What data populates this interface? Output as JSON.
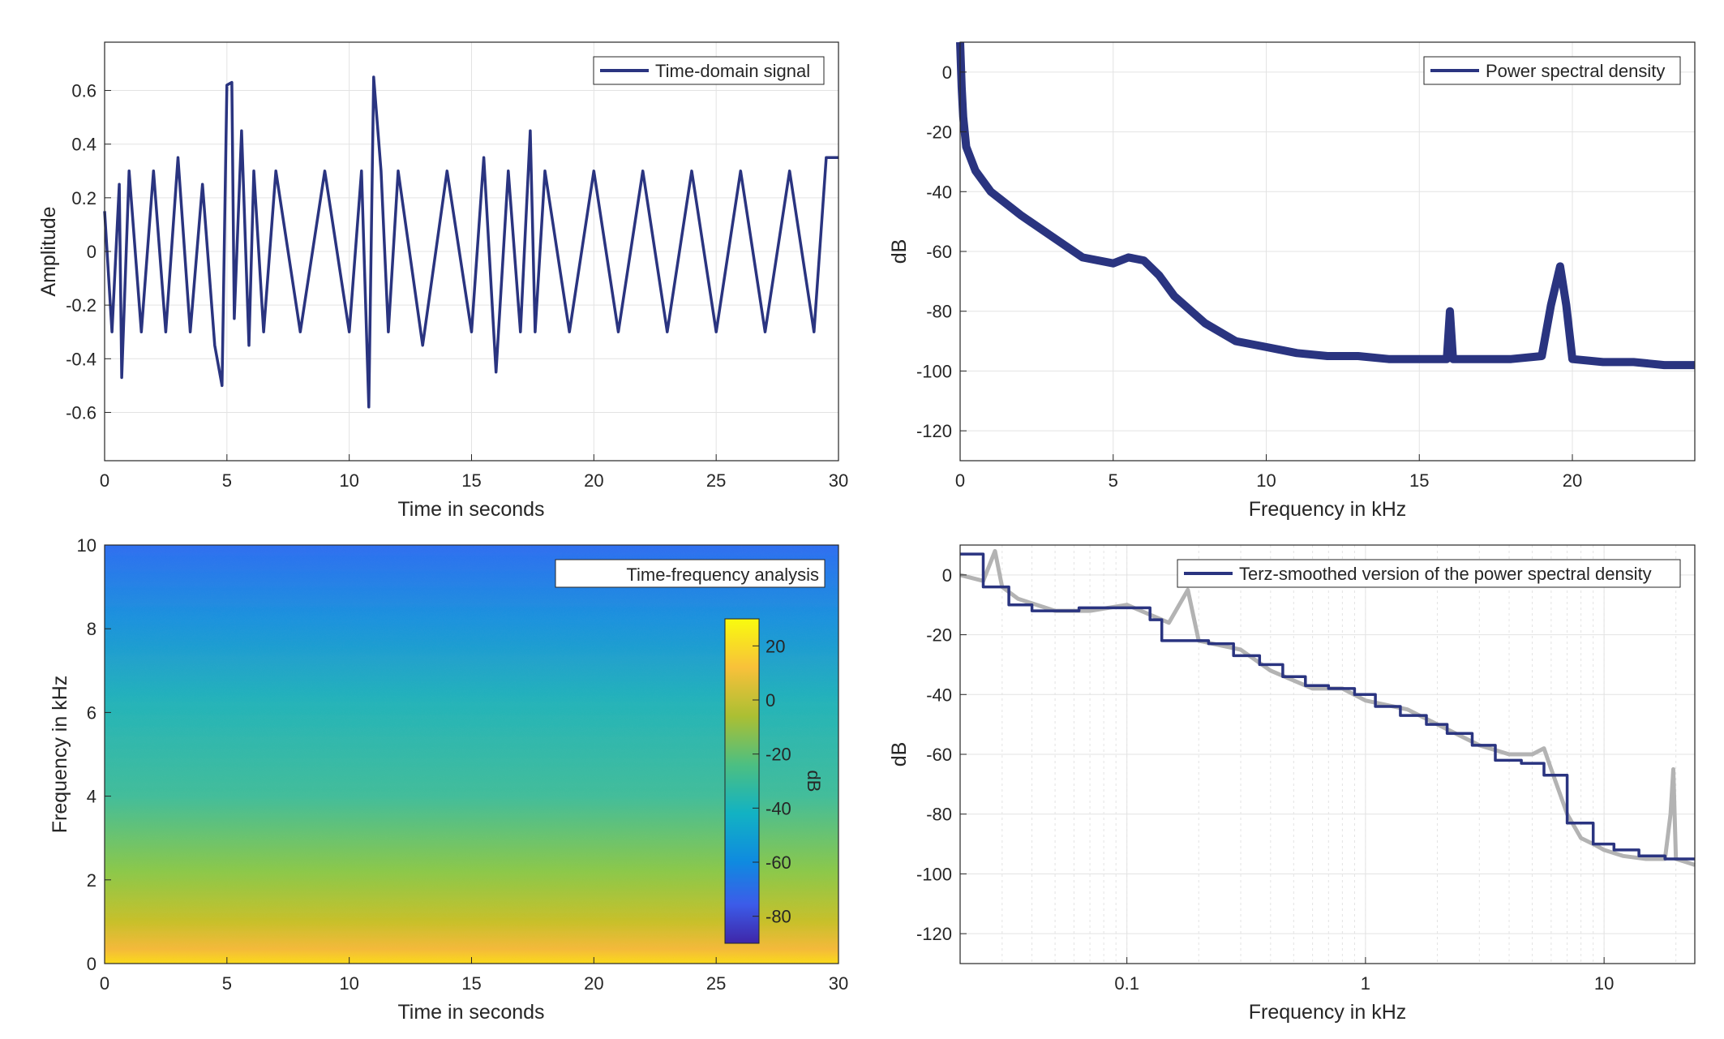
{
  "colors": {
    "series": "#2a3480",
    "background": "#ffffff",
    "grid": "#e3e3e3",
    "axis": "#262626",
    "smoothed_raw": "#b3b3b3"
  },
  "chart_data": [
    {
      "id": "time-signal",
      "type": "line",
      "legend": [
        "Time-domain signal"
      ],
      "legend_placement": "top-right",
      "xlabel": "Time in seconds",
      "ylabel": "Amplitude",
      "xlim": [
        0,
        30
      ],
      "ylim": [
        -0.78,
        0.78
      ],
      "xticks": [
        0,
        5,
        10,
        15,
        20,
        25,
        30
      ],
      "xtick_labels": [
        "0",
        "5",
        "10",
        "15",
        "20",
        "25",
        "30"
      ],
      "yticks": [
        0.6,
        0.4,
        0.2,
        0,
        -0.2,
        -0.4,
        -0.6
      ],
      "ytick_labels": [
        "0.6",
        "0.4",
        "0.2",
        "0",
        "-0.2",
        "-0.4",
        "-0.6"
      ],
      "grid": true,
      "series": [
        {
          "x": [
            0,
            0.3,
            0.6,
            0.7,
            1,
            1.5,
            2,
            2.5,
            3,
            3.5,
            4,
            4.5,
            4.8,
            5,
            5.2,
            5.3,
            5.6,
            5.9,
            6.1,
            6.5,
            7,
            8,
            9,
            10,
            10.5,
            10.8,
            11,
            11.3,
            11.6,
            12,
            13,
            14,
            15,
            15.5,
            16,
            16.5,
            17,
            17.4,
            17.6,
            18,
            19,
            20,
            21,
            22,
            23,
            24,
            25,
            26,
            27,
            28,
            29,
            29.5,
            30
          ],
          "y": [
            0.15,
            -0.3,
            0.25,
            -0.47,
            0.3,
            -0.3,
            0.3,
            -0.3,
            0.35,
            -0.3,
            0.25,
            -0.35,
            -0.5,
            0.62,
            0.63,
            -0.25,
            0.45,
            -0.35,
            0.3,
            -0.3,
            0.3,
            -0.3,
            0.3,
            -0.3,
            0.3,
            -0.58,
            0.65,
            0.3,
            -0.3,
            0.3,
            -0.35,
            0.3,
            -0.3,
            0.35,
            -0.45,
            0.3,
            -0.3,
            0.45,
            -0.3,
            0.3,
            -0.3,
            0.3,
            -0.3,
            0.3,
            -0.3,
            0.3,
            -0.3,
            0.3,
            -0.3,
            0.3,
            -0.3,
            0.35,
            0.35
          ]
        }
      ]
    },
    {
      "id": "psd",
      "type": "line",
      "legend": [
        "Power spectral density"
      ],
      "legend_placement": "top-right",
      "xlabel": "Frequency in kHz",
      "ylabel": "dB",
      "xlim": [
        0,
        24
      ],
      "ylim": [
        -130,
        10
      ],
      "xticks": [
        0,
        5,
        10,
        15,
        20
      ],
      "xtick_labels": [
        "0",
        "5",
        "10",
        "15",
        "20"
      ],
      "yticks": [
        0,
        -20,
        -40,
        -60,
        -80,
        -100,
        -120
      ],
      "ytick_labels": [
        "0",
        "-20",
        "-40",
        "-60",
        "-80",
        "-100",
        "-120"
      ],
      "grid": true,
      "series": [
        {
          "x": [
            0,
            0.05,
            0.1,
            0.2,
            0.5,
            1,
            2,
            3,
            4,
            5,
            5.5,
            6,
            6.5,
            7,
            8,
            9,
            10,
            11,
            12,
            13,
            14,
            15,
            15.9,
            16,
            16.1,
            17,
            18,
            19,
            19.3,
            19.6,
            19.8,
            20,
            21,
            22,
            23,
            24
          ],
          "y": [
            10,
            -5,
            -15,
            -25,
            -33,
            -40,
            -48,
            -55,
            -62,
            -64,
            -62,
            -63,
            -68,
            -75,
            -84,
            -90,
            -92,
            -94,
            -95,
            -95,
            -96,
            -96,
            -96,
            -80,
            -96,
            -96,
            -96,
            -95,
            -78,
            -65,
            -78,
            -96,
            -97,
            -97,
            -98,
            -98
          ]
        }
      ]
    },
    {
      "id": "spectrogram",
      "type": "heatmap",
      "legend": [
        "Time-frequency analysis"
      ],
      "legend_placement": "top-right",
      "xlabel": "Time in seconds",
      "ylabel": "Frequency in kHz",
      "xlim": [
        0,
        30
      ],
      "ylim": [
        0,
        10
      ],
      "xticks": [
        0,
        5,
        10,
        15,
        20,
        25,
        30
      ],
      "xtick_labels": [
        "0",
        "5",
        "10",
        "15",
        "20",
        "25",
        "30"
      ],
      "yticks": [
        0,
        2,
        4,
        6,
        8,
        10
      ],
      "ytick_labels": [
        "0",
        "2",
        "4",
        "6",
        "8",
        "10"
      ],
      "colorbar": {
        "label": "dB",
        "range": [
          -90,
          30
        ],
        "ticks": [
          20,
          0,
          -20,
          -40,
          -60,
          -80
        ],
        "tick_labels": [
          "20",
          "0",
          "-20",
          "-40",
          "-60",
          "-80"
        ]
      },
      "approx_level_by_frequency": {
        "frequency_khz": [
          0,
          0.3,
          1,
          2,
          4,
          6,
          8,
          10
        ],
        "level_db": [
          15,
          5,
          -10,
          -18,
          -25,
          -30,
          -40,
          -50
        ]
      }
    },
    {
      "id": "terz-psd",
      "type": "line",
      "legend": [
        "Terz-smoothed version of the power spectral density"
      ],
      "legend_placement": "top-right",
      "xlabel": "Frequency in kHz",
      "ylabel": "dB",
      "xscale": "log",
      "xlim": [
        0.02,
        24
      ],
      "ylim": [
        -130,
        10
      ],
      "xticks": [
        0.1,
        1,
        10
      ],
      "xtick_labels": [
        "0.1",
        "1",
        "10"
      ],
      "yticks": [
        0,
        -20,
        -40,
        -60,
        -80,
        -100,
        -120
      ],
      "ytick_labels": [
        "0",
        "-20",
        "-40",
        "-60",
        "-80",
        "-100",
        "-120"
      ],
      "grid": true,
      "series": [
        {
          "role": "smoothed",
          "x": [
            0.02,
            0.025,
            0.025,
            0.032,
            0.032,
            0.04,
            0.04,
            0.063,
            0.063,
            0.08,
            0.08,
            0.125,
            0.125,
            0.14,
            0.14,
            0.22,
            0.22,
            0.28,
            0.28,
            0.36,
            0.36,
            0.45,
            0.45,
            0.56,
            0.56,
            0.7,
            0.7,
            0.9,
            0.9,
            1.1,
            1.1,
            1.4,
            1.4,
            1.8,
            1.8,
            2.2,
            2.2,
            2.8,
            2.8,
            3.5,
            3.5,
            4.5,
            4.5,
            5.6,
            5.6,
            7,
            7,
            9,
            9,
            11,
            11,
            14,
            14,
            18,
            18,
            24
          ],
          "y": [
            7,
            7,
            -4,
            -4,
            -10,
            -10,
            -12,
            -12,
            -11,
            -11,
            -11,
            -11,
            -15,
            -15,
            -22,
            -22,
            -23,
            -23,
            -27,
            -27,
            -30,
            -30,
            -34,
            -34,
            -37,
            -37,
            -38,
            -38,
            -40,
            -40,
            -44,
            -44,
            -47,
            -47,
            -50,
            -50,
            -53,
            -53,
            -57,
            -57,
            -62,
            -62,
            -63,
            -63,
            -67,
            -67,
            -83,
            -83,
            -90,
            -90,
            -92,
            -92,
            -94,
            -94,
            -95,
            -95
          ]
        },
        {
          "role": "raw",
          "x": [
            0.02,
            0.025,
            0.028,
            0.03,
            0.035,
            0.05,
            0.07,
            0.1,
            0.15,
            0.18,
            0.2,
            0.3,
            0.4,
            0.6,
            0.8,
            1,
            1.5,
            2,
            3,
            4,
            5,
            5.6,
            6,
            7,
            8,
            9,
            10,
            12,
            15,
            18,
            19,
            19.5,
            20,
            22,
            24
          ],
          "y": [
            0,
            -2,
            8,
            -4,
            -8,
            -12,
            -12,
            -10,
            -16,
            -5,
            -22,
            -25,
            -32,
            -38,
            -38,
            -42,
            -45,
            -50,
            -57,
            -60,
            -60,
            -58,
            -65,
            -80,
            -88,
            -90,
            -92,
            -94,
            -95,
            -95,
            -80,
            -65,
            -95,
            -96,
            -97
          ]
        }
      ]
    }
  ]
}
